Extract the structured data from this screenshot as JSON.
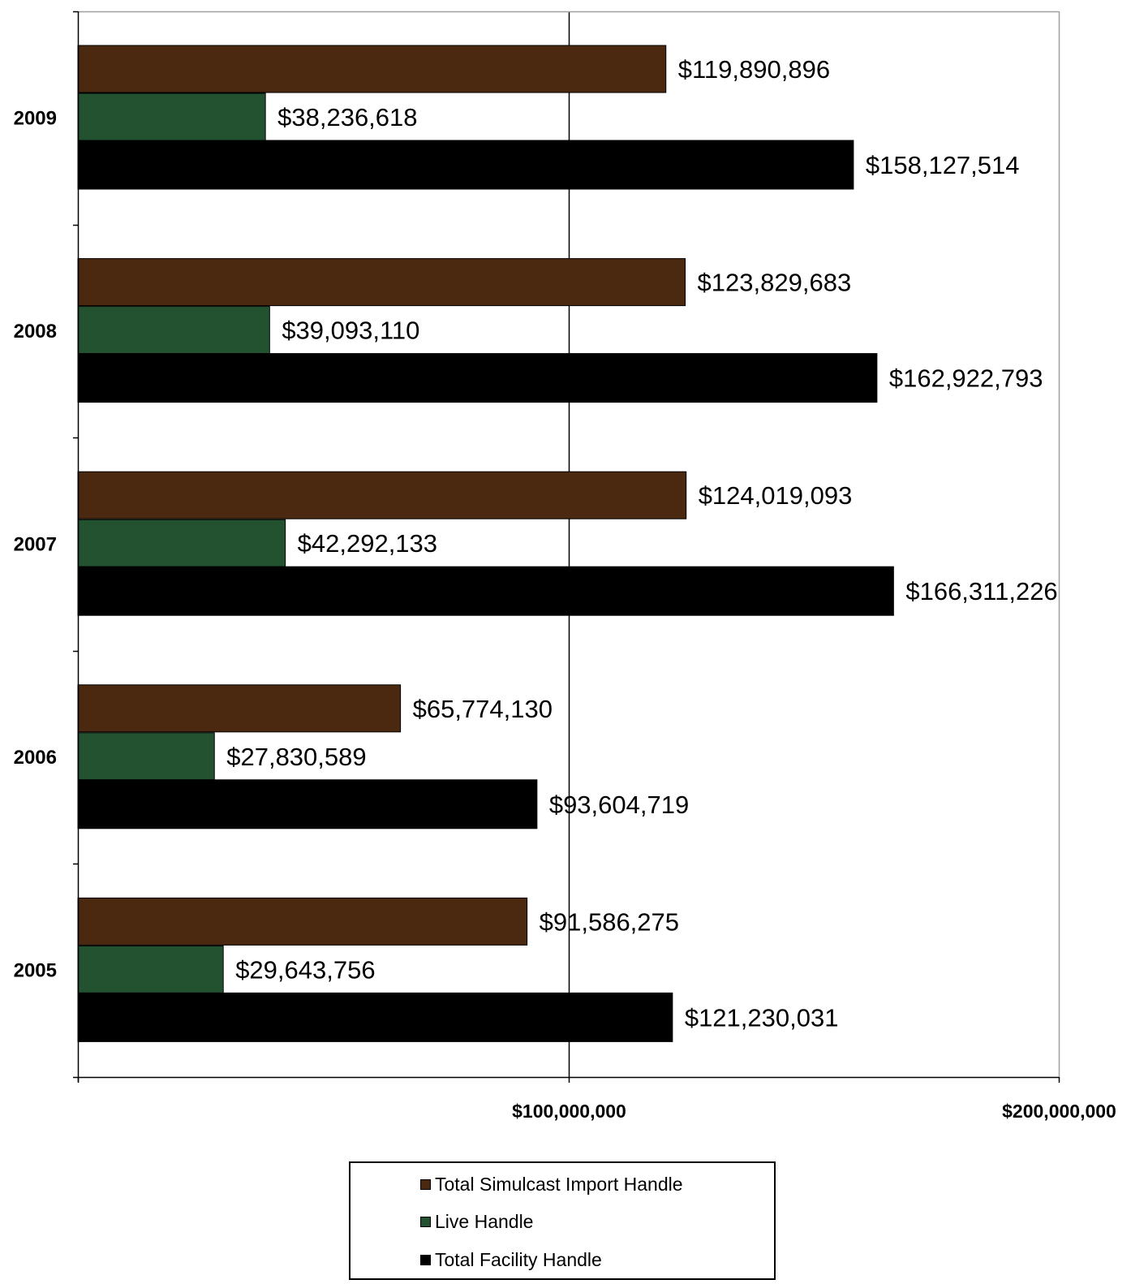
{
  "chart_data": {
    "type": "bar",
    "orientation": "horizontal",
    "categories": [
      "2009",
      "2008",
      "2007",
      "2006",
      "2005"
    ],
    "series": [
      {
        "name": "Total Simulcast Import Handle",
        "color": "#4a2910",
        "values": [
          119890896,
          123829683,
          124019093,
          65774130,
          91586275
        ],
        "labels": [
          "$119,890,896",
          "$123,829,683",
          "$124,019,093",
          "$65,774,130",
          "$91,586,275"
        ]
      },
      {
        "name": "Live Handle",
        "color": "#22522f",
        "values": [
          38236618,
          39093110,
          42292133,
          27830589,
          29643756
        ],
        "labels": [
          "$38,236,618",
          "$39,093,110",
          "$42,292,133",
          "$27,830,589",
          "$29,643,756"
        ]
      },
      {
        "name": "Total Facility Handle",
        "color": "#000000",
        "values": [
          158127514,
          162922793,
          166311226,
          93604719,
          121230031
        ],
        "labels": [
          "$158,127,514",
          "$162,922,793",
          "$166,311,226",
          "$93,604,719",
          "$121,230,031"
        ]
      }
    ],
    "xlim": [
      0,
      200000000
    ],
    "xticks": [
      0,
      100000000,
      200000000
    ],
    "xtick_labels": [
      "",
      "$100,000,000",
      "$200,000,000"
    ],
    "title": "",
    "xlabel": "",
    "ylabel": "",
    "grid": "vertical major gridlines",
    "legend_position": "bottom"
  }
}
